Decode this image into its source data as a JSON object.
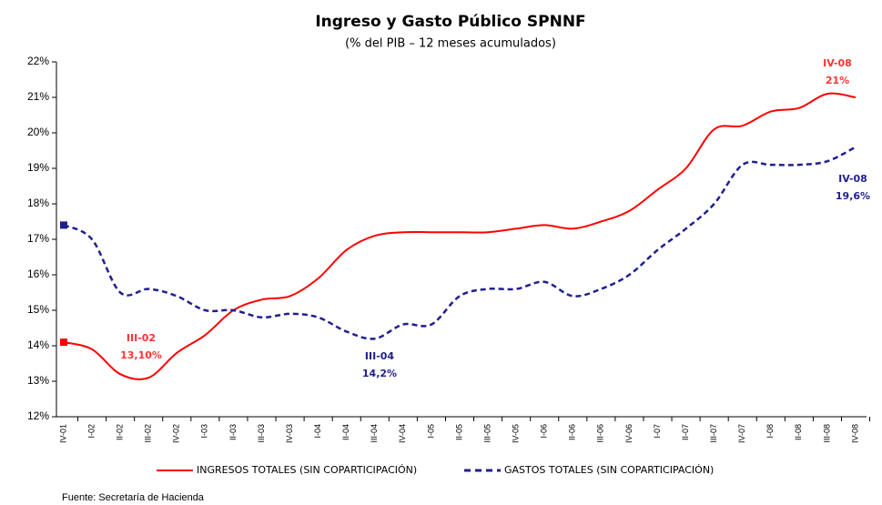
{
  "chart_data": {
    "type": "line",
    "title": "Ingreso y Gasto Público SPNNF",
    "subtitle": "(% del PIB – 12 meses acumulados)",
    "source": "Fuente: Secretaría de Hacienda",
    "categories": [
      "IV-01",
      "I-02",
      "II-02",
      "III-02",
      "IV-02",
      "I-03",
      "II-03",
      "III-03",
      "IV-03",
      "I-04",
      "II-04",
      "III-04",
      "IV-04",
      "I-05",
      "II-05",
      "III-05",
      "IV-05",
      "I-06",
      "II-06",
      "III-06",
      "IV-06",
      "I-07",
      "II-07",
      "III-07",
      "IV-07",
      "I-08",
      "II-08",
      "III-08",
      "IV-08"
    ],
    "series": [
      {
        "name": "INGRESOS TOTALES (SIN COPARTICIPACIÓN)",
        "color": "#ff0000",
        "dash": false,
        "values": [
          14.1,
          13.9,
          13.2,
          13.1,
          13.8,
          14.3,
          15.0,
          15.3,
          15.4,
          15.9,
          16.7,
          17.1,
          17.2,
          17.2,
          17.2,
          17.2,
          17.3,
          17.4,
          17.3,
          17.5,
          17.8,
          18.4,
          19.0,
          20.1,
          20.2,
          20.6,
          20.7,
          21.1,
          21.0
        ]
      },
      {
        "name": "GASTOS TOTALES (SIN COPARTICIPACIÓN)",
        "color": "#1f1f8f",
        "dash": true,
        "values": [
          17.4,
          17.0,
          15.5,
          15.6,
          15.4,
          15.0,
          15.0,
          14.8,
          14.9,
          14.8,
          14.4,
          14.2,
          14.6,
          14.6,
          15.4,
          15.6,
          15.6,
          15.8,
          15.4,
          15.6,
          16.0,
          16.7,
          17.3,
          18.0,
          19.1,
          19.1,
          19.1,
          19.2,
          19.6
        ]
      }
    ],
    "annotations": [
      {
        "label": "III-02",
        "value_label": "13,10%",
        "color": "#ff3333"
      },
      {
        "label": "III-04",
        "value_label": "14,2%",
        "color": "#1f1f8f"
      },
      {
        "label": "IV-08",
        "value_label": "21%",
        "color": "#ff3333"
      },
      {
        "label": "IV-08",
        "value_label": "19,6%",
        "color": "#1f1f8f"
      }
    ],
    "ylim": [
      12,
      22
    ],
    "yticks": [
      {
        "value": 12,
        "label": "12%"
      },
      {
        "value": 13,
        "label": "13%"
      },
      {
        "value": 14,
        "label": "14%"
      },
      {
        "value": 15,
        "label": "15%"
      },
      {
        "value": 16,
        "label": "16%"
      },
      {
        "value": 17,
        "label": "17%"
      },
      {
        "value": 18,
        "label": "18%"
      },
      {
        "value": 19,
        "label": "19%"
      },
      {
        "value": 20,
        "label": "20%"
      },
      {
        "value": 21,
        "label": "21%"
      },
      {
        "value": 22,
        "label": "22%"
      }
    ],
    "grid": false
  }
}
